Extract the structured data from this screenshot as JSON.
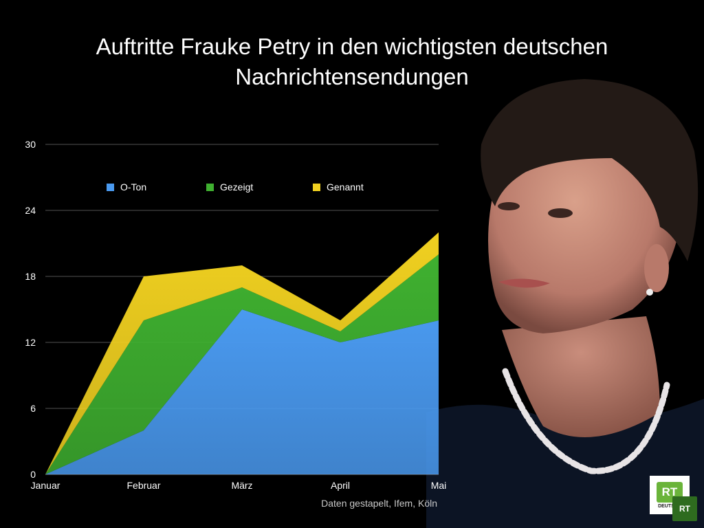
{
  "title_lines": [
    "Auftritte Frauke Petry in den wichtigsten deutschen",
    "Nachrichtensendungen"
  ],
  "source_note": "Daten gestapelt, Ifem, Köln",
  "logo": {
    "mark": "RT",
    "sub": "DEUTSCH"
  },
  "colors": {
    "background": "#000000",
    "o_ton": "#4a9af0",
    "gezeigt": "#3fb030",
    "genannt": "#f0d020",
    "grid": "#555555"
  },
  "chart_data": {
    "type": "area",
    "stacked": true,
    "title": "Auftritte Frauke Petry in den wichtigsten deutschen Nachrichtensendungen",
    "categories": [
      "Januar",
      "Februar",
      "März",
      "April",
      "Mai"
    ],
    "series": [
      {
        "name": "O-Ton",
        "color": "#4a9af0",
        "values": [
          0,
          4,
          15,
          12,
          14
        ]
      },
      {
        "name": "Gezeigt",
        "color": "#3fb030",
        "values": [
          0,
          10,
          2,
          1,
          6
        ]
      },
      {
        "name": "Genannt",
        "color": "#f0d020",
        "values": [
          0,
          4,
          2,
          1,
          2
        ]
      }
    ],
    "ylim": [
      0,
      30
    ],
    "yticks": [
      0,
      6,
      12,
      18,
      24,
      30
    ],
    "grid": true,
    "legend_position": "top",
    "xlabel": "",
    "ylabel": ""
  }
}
